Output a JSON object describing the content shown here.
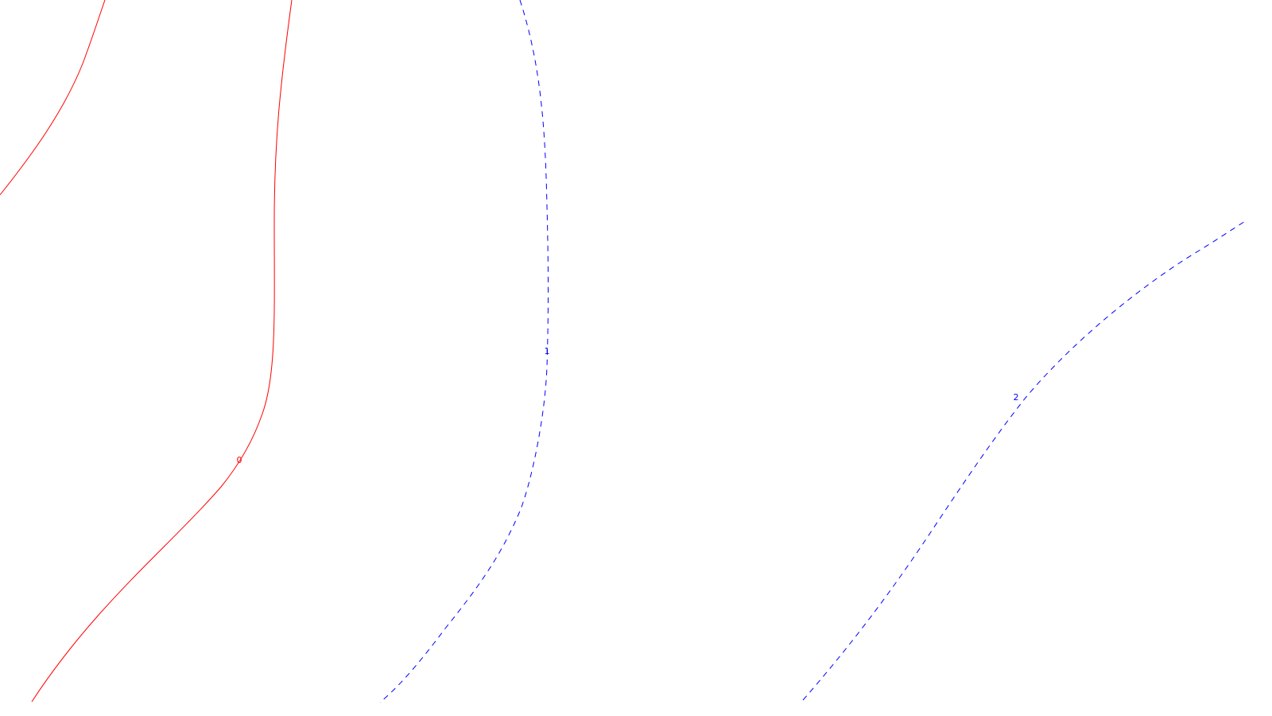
{
  "chart_data": {
    "type": "contour",
    "title": "",
    "xlabel": "",
    "ylabel": "",
    "series": [
      {
        "name": "0",
        "level_label": "0",
        "color": "#ff0000",
        "style": "solid"
      },
      {
        "name": "0",
        "level_label": "0",
        "color": "#ff0000",
        "style": "solid"
      },
      {
        "name": "1",
        "level_label": "1",
        "color": "#0000ff",
        "style": "dashed"
      },
      {
        "name": "2",
        "level_label": "2",
        "color": "#0000ff",
        "style": "dashed"
      }
    ]
  }
}
